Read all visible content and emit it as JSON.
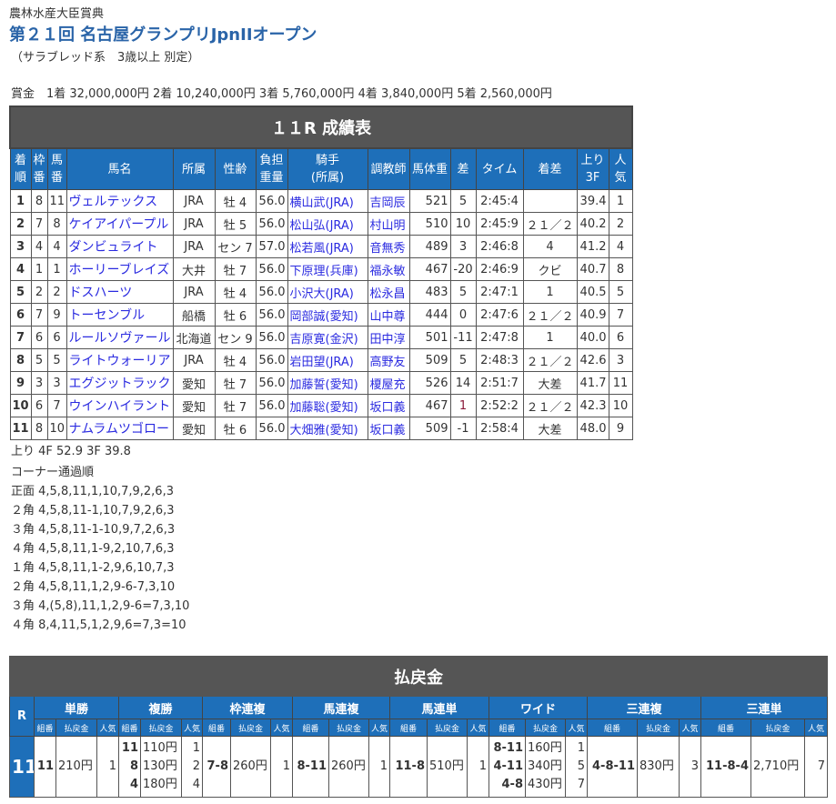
{
  "race": {
    "sponsor": "農林水産大臣賞典",
    "title": "第２１回 名古屋グランプリJpnIIオープン",
    "conditions": "（サラブレッド系　3歳以上 別定）",
    "prize": "賞金　1着 32,000,000円 2着 10,240,000円 3着 5,760,000円 4着 3,840,000円 5着 2,560,000円"
  },
  "results": {
    "caption": "１１R 成績表",
    "headers": [
      "着順",
      "枠番",
      "馬番",
      "馬名",
      "所属",
      "性齢",
      "負担重量",
      "騎手(所属)",
      "調教師",
      "馬体重",
      "差",
      "タイム",
      "着差",
      "上り3F",
      "人気"
    ],
    "rows": [
      [
        "1",
        "8",
        "11",
        "ヴェルテックス",
        "JRA",
        "牡 4",
        "56.0",
        "横山武(JRA)",
        "吉岡辰",
        "521",
        "5",
        "2:45:4",
        "",
        "39.4",
        "1"
      ],
      [
        "2",
        "7",
        "8",
        "ケイアイパープル",
        "JRA",
        "牡 5",
        "56.0",
        "松山弘(JRA)",
        "村山明",
        "510",
        "10",
        "2:45:9",
        "２１／２",
        "40.2",
        "2"
      ],
      [
        "3",
        "4",
        "4",
        "ダンビュライト",
        "JRA",
        "セン 7",
        "57.0",
        "松若風(JRA)",
        "音無秀",
        "489",
        "3",
        "2:46:8",
        "4",
        "41.2",
        "4"
      ],
      [
        "4",
        "1",
        "1",
        "ホーリーブレイズ",
        "大井",
        "牡 7",
        "56.0",
        "下原理(兵庫)",
        "福永敏",
        "467",
        "-20",
        "2:46:9",
        "クビ",
        "40.7",
        "8"
      ],
      [
        "5",
        "2",
        "2",
        "ドスハーツ",
        "JRA",
        "牡 4",
        "56.0",
        "小沢大(JRA)",
        "松永昌",
        "483",
        "5",
        "2:47:1",
        "1",
        "40.5",
        "5"
      ],
      [
        "6",
        "7",
        "9",
        "トーセンブル",
        "船橋",
        "牡 6",
        "56.0",
        "岡部誠(愛知)",
        "山中尊",
        "444",
        "0",
        "2:47:6",
        "２１／２",
        "40.9",
        "7"
      ],
      [
        "7",
        "6",
        "6",
        "ルールソヴァール",
        "北海道",
        "セン 9",
        "56.0",
        "吉原寛(金沢)",
        "田中淳",
        "501",
        "-11",
        "2:47:8",
        "1",
        "40.0",
        "6"
      ],
      [
        "8",
        "5",
        "5",
        "ライトウォーリア",
        "JRA",
        "牡 4",
        "56.0",
        "岩田望(JRA)",
        "高野友",
        "509",
        "5",
        "2:48:3",
        "２１／２",
        "42.6",
        "3"
      ],
      [
        "9",
        "3",
        "3",
        "エグジットラック",
        "愛知",
        "牡 7",
        "56.0",
        "加藤誓(愛知)",
        "榎屋充",
        "526",
        "14",
        "2:51:7",
        "大差",
        "41.7",
        "11"
      ],
      [
        "10",
        "6",
        "7",
        "ウインハイラント",
        "愛知",
        "牡 7",
        "56.0",
        "加藤聡(愛知)",
        "坂口義",
        "467",
        "1",
        "2:52:2",
        "２１／２",
        "42.3",
        "10"
      ],
      [
        "11",
        "8",
        "10",
        "ナムラムツゴロー",
        "愛知",
        "牡 6",
        "56.0",
        "大畑雅(愛知)",
        "坂口義",
        "509",
        "-1",
        "2:58:4",
        "大差",
        "48.0",
        "9"
      ]
    ]
  },
  "laps": {
    "agari": "上り 4F 52.9 3F 39.8",
    "corner_title": "コーナー通過順",
    "corners": [
      "正面 4,5,8,11,1,10,7,9,2,6,3",
      "２角 4,5,8,11-1,10,7,9,2,6,3",
      "３角 4,5,8,11-1-10,9,7,2,6,3",
      "４角 4,5,8,11,1-9,2,10,7,6,3",
      "１角 4,5,8,11,1-2,9,6,10,7,3",
      "２角 4,5,8,11,1,2,9-6-7,3,10",
      "３角 4,(5,8),11,1,2,9-6=7,3,10",
      "４角 8,4,11,5,1,2,9,6=7,3=10"
    ]
  },
  "payout": {
    "caption": "払戻金",
    "r_label": "R",
    "race": "11",
    "sub": [
      "組番",
      "払戻金",
      "人気"
    ],
    "bets": [
      {
        "name": "単勝",
        "k": [
          "11"
        ],
        "p": [
          "210円"
        ],
        "n": [
          "1"
        ]
      },
      {
        "name": "複勝",
        "k": [
          "11",
          "8",
          "4"
        ],
        "p": [
          "110円",
          "130円",
          "180円"
        ],
        "n": [
          "1",
          "2",
          "4"
        ]
      },
      {
        "name": "枠連複",
        "k": [
          "7-8"
        ],
        "p": [
          "260円"
        ],
        "n": [
          "1"
        ]
      },
      {
        "name": "馬連複",
        "k": [
          "8-11"
        ],
        "p": [
          "260円"
        ],
        "n": [
          "1"
        ]
      },
      {
        "name": "馬連単",
        "k": [
          "11-8"
        ],
        "p": [
          "510円"
        ],
        "n": [
          "1"
        ]
      },
      {
        "name": "ワイド",
        "k": [
          "8-11",
          "4-11",
          "4-8"
        ],
        "p": [
          "160円",
          "340円",
          "430円"
        ],
        "n": [
          "1",
          "5",
          "7"
        ]
      },
      {
        "name": "三連複",
        "k": [
          "4-8-11"
        ],
        "p": [
          "830円"
        ],
        "n": [
          "3"
        ]
      },
      {
        "name": "三連単",
        "k": [
          "11-8-4"
        ],
        "p": [
          "2,710円"
        ],
        "n": [
          "7"
        ]
      }
    ]
  },
  "colors": {
    "header_dark": "#555555",
    "header_blue": "#1e6fb9",
    "link": "#2a2ae0",
    "title": "#2a64a8"
  }
}
